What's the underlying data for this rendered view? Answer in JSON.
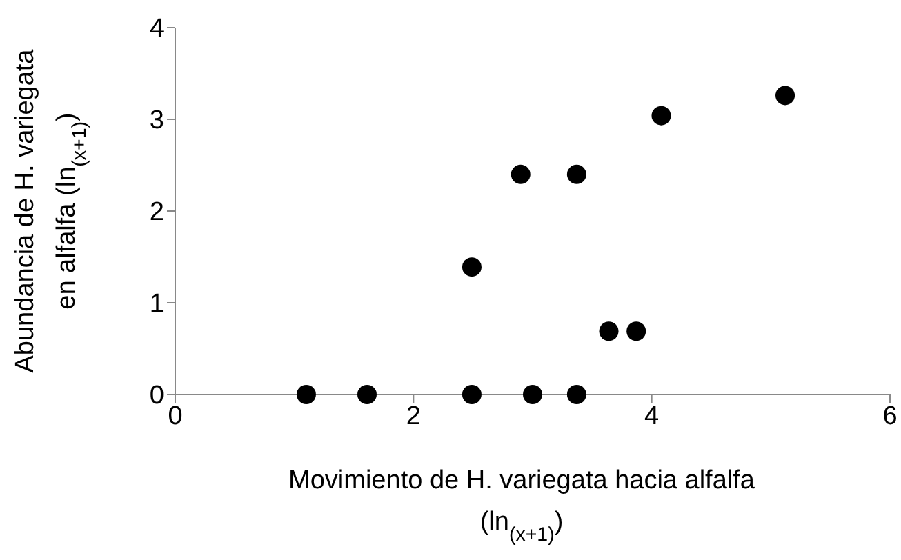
{
  "chart_data": {
    "type": "scatter",
    "xlabel": "Movimiento de H. variegata hacia alfalfa\n(ln$_{(x+1)}$)",
    "ylabel": "Abundancia de H. variegata\nen alfalfa (ln$_{(x+1)}$)",
    "x": [
      1.1,
      1.61,
      2.49,
      2.49,
      2.9,
      3.0,
      3.37,
      3.37,
      3.64,
      3.87,
      4.08,
      5.12
    ],
    "values": [
      0,
      0,
      0,
      1.39,
      2.4,
      0,
      0,
      2.4,
      0.69,
      0.69,
      3.04,
      3.26
    ],
    "color": "#000000",
    "marker": "circle",
    "xlim": [
      0,
      6
    ],
    "xticks": [
      0,
      2,
      4,
      6
    ],
    "ylim": [
      0,
      4
    ],
    "yticks": [
      0,
      1,
      2,
      3,
      4
    ]
  }
}
